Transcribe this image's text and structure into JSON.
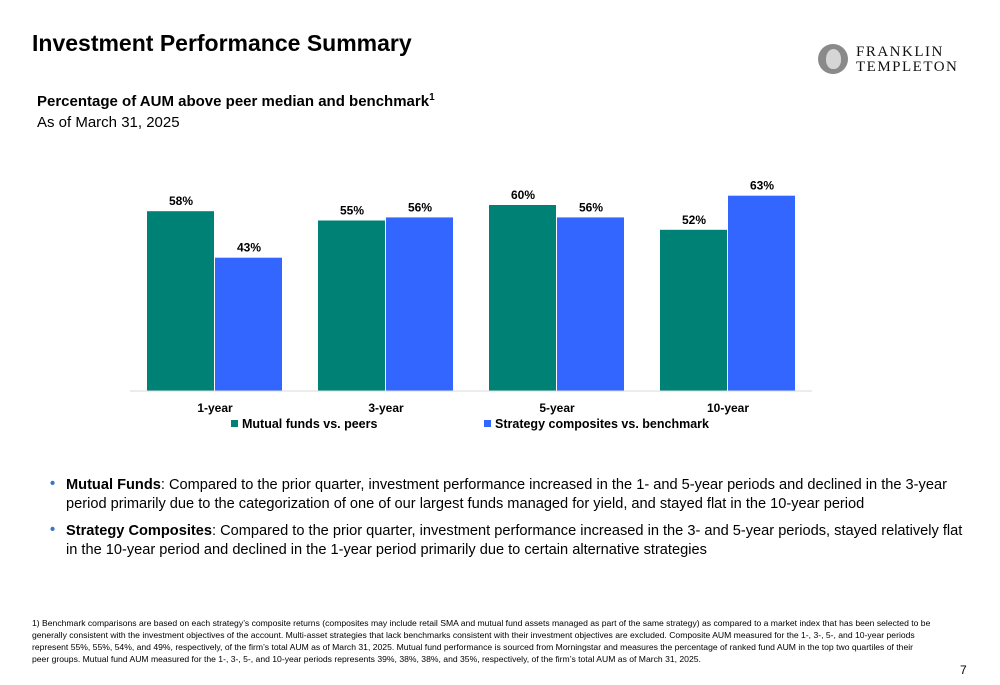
{
  "header": {
    "title": "Investment Performance Summary",
    "logo_line1": "FRANKLIN",
    "logo_line2": "TEMPLETON"
  },
  "subtitle": "Percentage of AUM above peer median and benchmark",
  "subtitle_footnote_marker": "1",
  "as_of": "As of March 31, 2025",
  "chart_data": {
    "type": "bar",
    "categories": [
      "1-year",
      "3-year",
      "5-year",
      "10-year"
    ],
    "series": [
      {
        "name": "Mutual funds vs. peers",
        "values": [
          58,
          55,
          60,
          52
        ],
        "labels": [
          "58%",
          "55%",
          "60%",
          "52%"
        ],
        "color": "#008176"
      },
      {
        "name": "Strategy composites vs. benchmark",
        "values": [
          43,
          56,
          56,
          63
        ],
        "labels": [
          "43%",
          "56%",
          "56%",
          "63%"
        ],
        "color": "#3366ff"
      }
    ],
    "ylim": [
      0,
      70
    ],
    "grid": false,
    "legend": "bottom"
  },
  "bullets": [
    {
      "head": "Mutual Funds",
      "text": ": Compared to the prior quarter, investment performance increased in the 1- and 5-year periods and declined in the 3-year period primarily due to the categorization of one of our largest funds managed for yield, and stayed flat in the 10-year period"
    },
    {
      "head": "Strategy Composites",
      "text": ": Compared to the prior quarter, investment performance increased in the 3- and 5-year periods, stayed relatively flat in the 10-year period and declined in the 1-year period primarily due to certain alternative strategies"
    }
  ],
  "footnote": "1) Benchmark comparisons are based on each strategy’s composite returns (composites may include retail SMA and mutual fund assets managed as part of the same strategy) as compared to a market index that has been selected to be generally consistent with the investment objectives of the account. Multi-asset strategies that lack benchmarks consistent with their investment objectives are excluded. Composite AUM measured for the 1-, 3-, 5-, and 10-year periods represent 55%, 55%, 54%, and 49%, respectively, of the firm’s total AUM as of March 31, 2025. Mutual fund performance is sourced from Morningstar and measures the percentage of ranked fund AUM in the top two quartiles of their peer groups. Mutual fund AUM measured for the 1-, 3-, 5-, and 10-year periods represents 39%, 38%, 38%, and 35%, respectively, of the firm’s total AUM as of March 31, 2025.",
  "page_number": "7"
}
